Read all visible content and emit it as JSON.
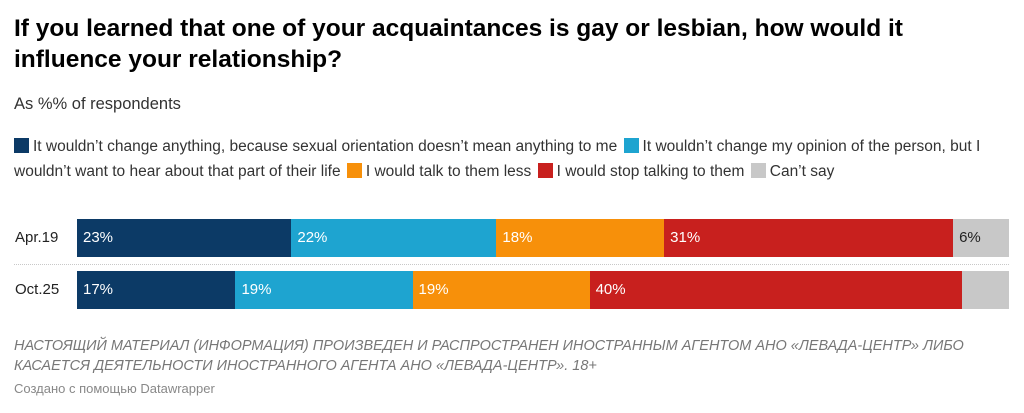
{
  "header": {
    "title": "If you learned that one of your acquaintances is gay or lesbian, how would it influence your relationship?",
    "subtitle": "As %% of respondents"
  },
  "footer": {
    "notes": "НАСТОЯЩИЙ МАТЕРИАЛ (ИНФОРМАЦИЯ) ПРОИЗВЕДЕН И РАСПРОСТРАНЕН ИНОСТРАННЫМ АГЕНТОМ АНО «ЛЕВАДА-ЦЕНТР» ЛИБО КАСАЕТСЯ ДЕЯТЕЛЬНОСТИ ИНОСТРАННОГО АГЕНТА АНО «ЛЕВАДА-ЦЕНТР». 18+",
    "byline": "Создано с помощью Datawrapper"
  },
  "chart_data": {
    "type": "bar",
    "orientation": "horizontal",
    "stacked": true,
    "categories": [
      "Apr.19",
      "Oct.25"
    ],
    "xlim": [
      0,
      100
    ],
    "legend_position": "top",
    "series": [
      {
        "name": "It wouldn’t change anything, because sexual orientation doesn’t mean anything to me",
        "color": "#0c3a66",
        "values": [
          23,
          17
        ],
        "labels": [
          "23%",
          "17%"
        ]
      },
      {
        "name": "It wouldn’t change my opinion of the person, but I wouldn’t want to hear about that part of their life",
        "color": "#1ea4d0",
        "values": [
          22,
          19
        ],
        "labels": [
          "22%",
          "19%"
        ]
      },
      {
        "name": "I would talk to them less",
        "color": "#f7900a",
        "values": [
          18,
          19
        ],
        "labels": [
          "18%",
          "19%"
        ]
      },
      {
        "name": "I would stop talking to them",
        "color": "#c8201e",
        "values": [
          31,
          40
        ],
        "labels": [
          "31%",
          "40%"
        ]
      },
      {
        "name": "Can’t say",
        "color": "#c8c8c8",
        "values": [
          6,
          5
        ],
        "labels": [
          "6%",
          ""
        ]
      }
    ]
  }
}
